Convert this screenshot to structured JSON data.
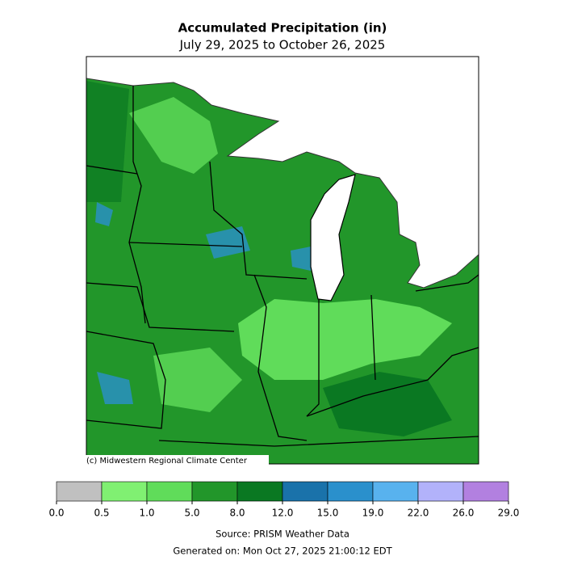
{
  "header": {
    "title": "Accumulated Precipitation (in)",
    "subtitle": "July 29, 2025 to October 26, 2025"
  },
  "map": {
    "credit": "(c) Midwestern Regional Climate Center"
  },
  "colorbar": {
    "bins": [
      {
        "value": 0,
        "label": "0.0"
      },
      {
        "value": 0.5,
        "label": "0.5"
      },
      {
        "value": 1,
        "label": "1.0"
      },
      {
        "value": 5,
        "label": "5.0"
      },
      {
        "value": 8,
        "label": "8.0"
      },
      {
        "value": 12,
        "label": "12.0"
      },
      {
        "value": 15,
        "label": "15.0"
      },
      {
        "value": 19,
        "label": "19.0"
      },
      {
        "value": 22,
        "label": "22.0"
      },
      {
        "value": 26,
        "label": "26.0"
      },
      {
        "value": 29,
        "label": "29.0"
      }
    ],
    "colors": [
      "#c0c0c0",
      "#80f072",
      "#60dc5a",
      "#22962a",
      "#0a7822",
      "#1a72aa",
      "#2a90cc",
      "#58b2ee",
      "#b2b2fa",
      "#b280e0"
    ]
  },
  "footer": {
    "source": "Source: PRISM Weather Data",
    "generated": "Generated on: Mon Oct 27, 2025 21:00:12 EDT"
  }
}
